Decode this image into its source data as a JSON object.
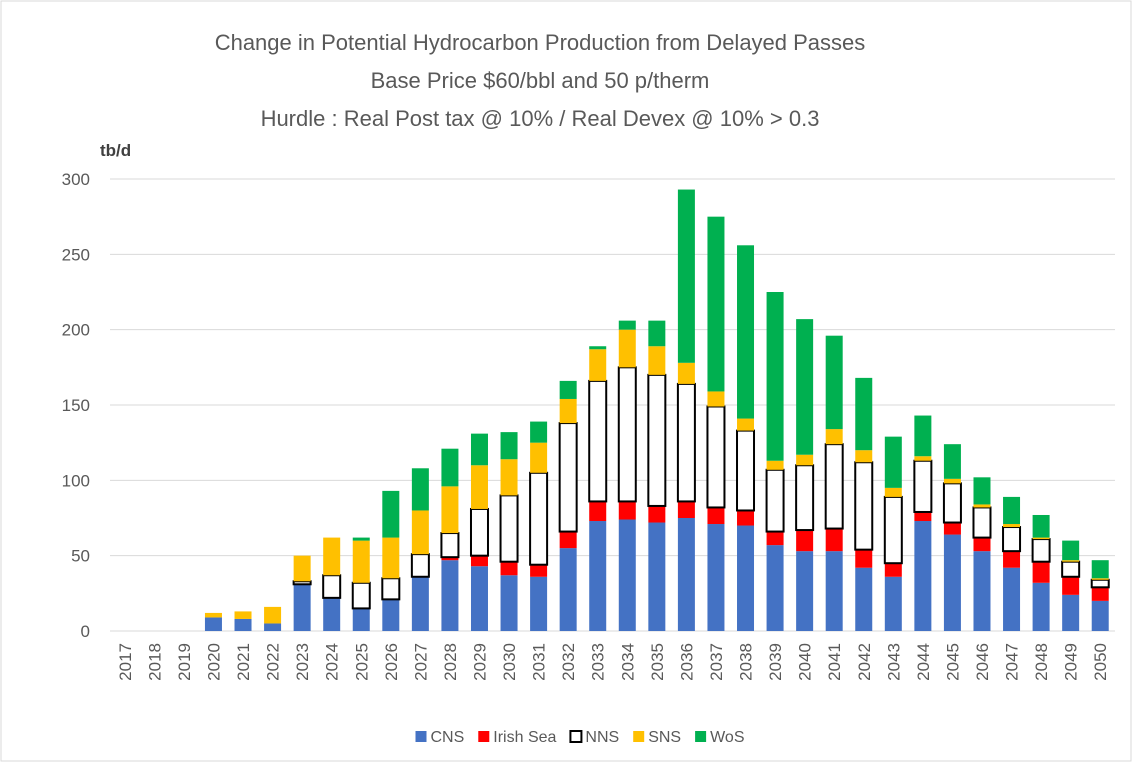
{
  "chart_data": {
    "type": "stacked_bar",
    "title": [
      "Change in Potential Hydrocarbon Production from Delayed Passes",
      "Base Price $60/bbl and 50 p/therm",
      "Hurdle : Real Post tax @ 10% / Real Devex @ 10% > 0.3"
    ],
    "y_label": "tb/d",
    "categories": [
      "2017",
      "2018",
      "2019",
      "2020",
      "2021",
      "2022",
      "2023",
      "2024",
      "2025",
      "2026",
      "2027",
      "2028",
      "2029",
      "2030",
      "2031",
      "2032",
      "2033",
      "2034",
      "2035",
      "2036",
      "2037",
      "2038",
      "2039",
      "2040",
      "2041",
      "2042",
      "2043",
      "2044",
      "2045",
      "2046",
      "2047",
      "2048",
      "2049",
      "2050"
    ],
    "series": [
      {
        "name": "CNS",
        "color": "#4472c4",
        "values": [
          0,
          0,
          0,
          9,
          8,
          5,
          31,
          22,
          15,
          21,
          36,
          47,
          43,
          37,
          36,
          55,
          73,
          74,
          72,
          75,
          71,
          70,
          57,
          53,
          53,
          42,
          36,
          73,
          64,
          53,
          42,
          32,
          24,
          20
        ]
      },
      {
        "name": "Irish Sea",
        "color": "#ff0000",
        "values": [
          0,
          0,
          0,
          0,
          0,
          0,
          0,
          0,
          0,
          0,
          0,
          2,
          7,
          9,
          8,
          11,
          13,
          12,
          11,
          11,
          11,
          10,
          9,
          14,
          15,
          12,
          9,
          6,
          8,
          9,
          11,
          14,
          12,
          9
        ]
      },
      {
        "name": "NNS",
        "color": "#ffffff",
        "edgecolor": "#000000",
        "values": [
          0,
          0,
          0,
          0,
          0,
          0,
          2,
          15,
          17,
          14,
          15,
          16,
          31,
          44,
          61,
          72,
          80,
          89,
          87,
          78,
          67,
          53,
          41,
          43,
          56,
          58,
          44,
          34,
          26,
          20,
          16,
          15,
          10,
          5
        ]
      },
      {
        "name": "SNS",
        "color": "#ffc000",
        "values": [
          0,
          0,
          0,
          3,
          5,
          11,
          17,
          25,
          28,
          27,
          29,
          31,
          29,
          24,
          20,
          16,
          21,
          25,
          19,
          14,
          10,
          8,
          6,
          7,
          10,
          8,
          6,
          3,
          3,
          2,
          2,
          1,
          1,
          1
        ]
      },
      {
        "name": "WoS",
        "color": "#00b050",
        "values": [
          0,
          0,
          0,
          0,
          0,
          0,
          0,
          0,
          2,
          31,
          28,
          25,
          21,
          18,
          14,
          12,
          2,
          6,
          17,
          115,
          116,
          115,
          112,
          90,
          62,
          48,
          34,
          27,
          23,
          18,
          18,
          15,
          13,
          12
        ]
      }
    ],
    "ylim": [
      0,
      300
    ],
    "yticks": [
      0,
      50,
      100,
      150,
      200,
      250,
      300
    ],
    "grid": true,
    "legend": "bottom"
  }
}
